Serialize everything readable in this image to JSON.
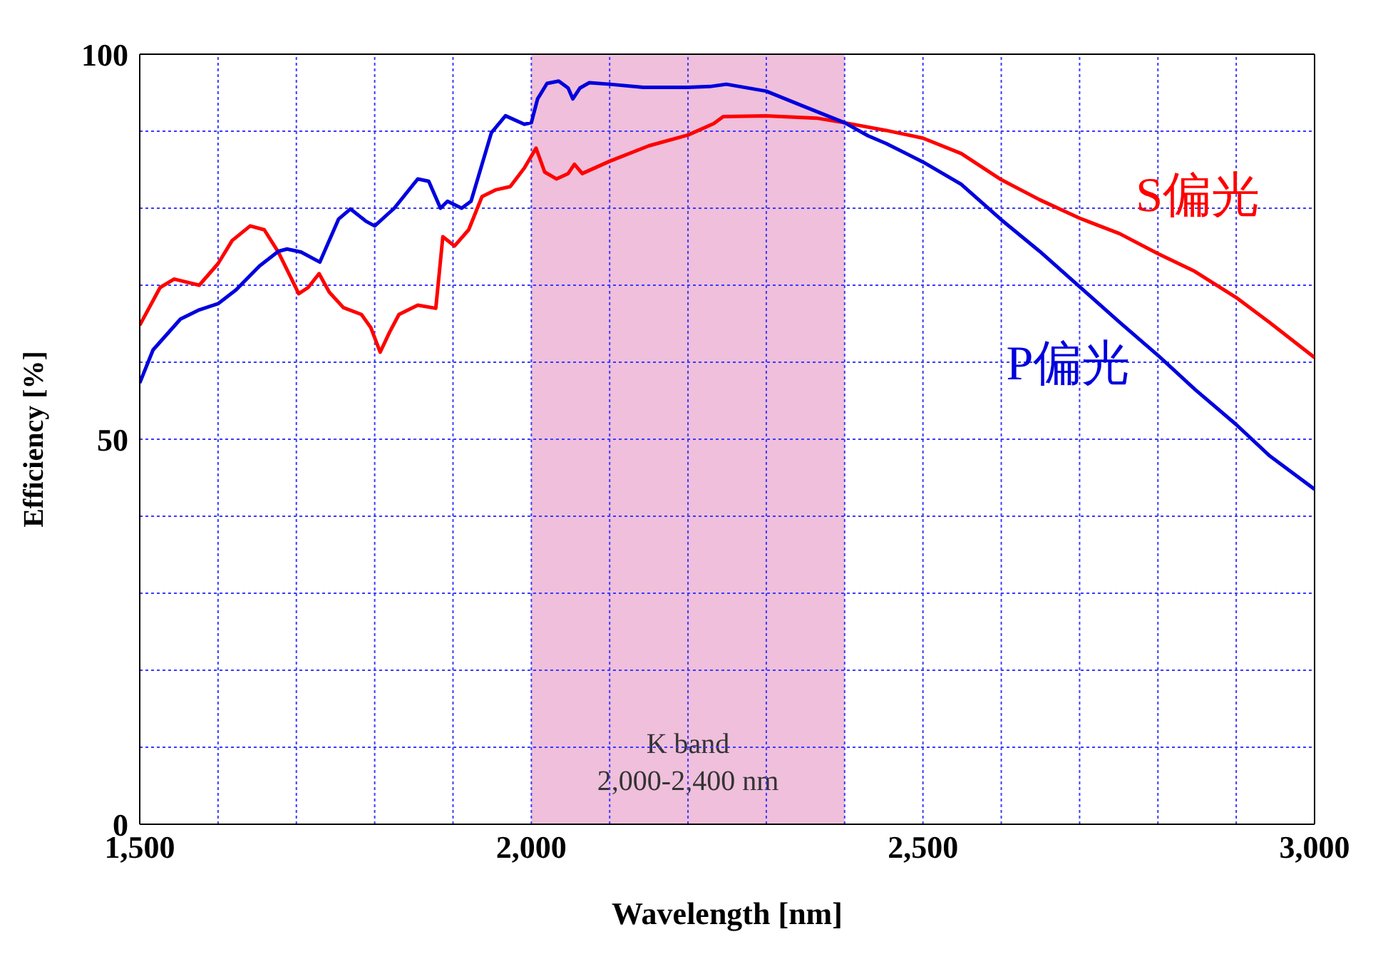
{
  "chart_data": {
    "type": "line",
    "xlabel": "Wavelength [nm]",
    "ylabel": "Efficiency [%]",
    "xlim": [
      1500,
      3000
    ],
    "ylim": [
      0,
      100
    ],
    "xticks": [
      {
        "value": 1500,
        "label": "1,500"
      },
      {
        "value": 1600,
        "label": null
      },
      {
        "value": 1700,
        "label": null
      },
      {
        "value": 1800,
        "label": null
      },
      {
        "value": 1900,
        "label": null
      },
      {
        "value": 2000,
        "label": "2,000"
      },
      {
        "value": 2100,
        "label": null
      },
      {
        "value": 2200,
        "label": null
      },
      {
        "value": 2300,
        "label": null
      },
      {
        "value": 2400,
        "label": null
      },
      {
        "value": 2500,
        "label": "2,500"
      },
      {
        "value": 2600,
        "label": null
      },
      {
        "value": 2700,
        "label": null
      },
      {
        "value": 2800,
        "label": null
      },
      {
        "value": 2900,
        "label": null
      },
      {
        "value": 3000,
        "label": "3,000"
      }
    ],
    "yticks": [
      0,
      {
        "value": 10,
        "label": null
      },
      {
        "value": 20,
        "label": null
      },
      {
        "value": 30,
        "label": null
      },
      {
        "value": 40,
        "label": null
      },
      50,
      {
        "value": 60,
        "label": null
      },
      {
        "value": 70,
        "label": null
      },
      {
        "value": 80,
        "label": null
      },
      {
        "value": 90,
        "label": null
      },
      100
    ],
    "grid": true,
    "legend": false,
    "marker": "none",
    "line_style": "solid",
    "bands": [
      {
        "axis": "x",
        "from": 2000,
        "to": 2400,
        "label": "K band\n2,000-2,400 nm",
        "color": "#efbfdb"
      }
    ],
    "series": [
      {
        "name": "S偏光",
        "color": "#ff0000",
        "x": [
          1500,
          1526,
          1544,
          1576,
          1600,
          1618,
          1641,
          1659,
          1677,
          1691,
          1703,
          1715,
          1729,
          1742,
          1760,
          1783,
          1795,
          1807,
          1819,
          1831,
          1855,
          1878,
          1887,
          1902,
          1920,
          1937,
          1955,
          1973,
          1991,
          2006,
          2017,
          2032,
          2047,
          2055,
          2065,
          2100,
          2150,
          2200,
          2233,
          2245,
          2300,
          2364,
          2400,
          2453,
          2500,
          2549,
          2600,
          2649,
          2700,
          2751,
          2800,
          2847,
          2900,
          2942,
          3000
        ],
        "values": [
          64.8,
          69.7,
          70.8,
          70.0,
          72.8,
          75.8,
          77.7,
          77.2,
          74.3,
          71.4,
          68.9,
          69.7,
          71.5,
          69.1,
          67.1,
          66.2,
          64.5,
          61.3,
          63.9,
          66.2,
          67.4,
          67.0,
          76.3,
          75.1,
          77.2,
          81.5,
          82.4,
          82.8,
          85.2,
          87.8,
          84.7,
          83.8,
          84.5,
          85.7,
          84.5,
          86.1,
          88.1,
          89.5,
          91.0,
          91.9,
          92.0,
          91.7,
          91.1,
          90.1,
          89.1,
          87.1,
          83.7,
          81.1,
          78.7,
          76.7,
          74.1,
          71.8,
          68.4,
          65.2,
          60.6
        ]
      },
      {
        "name": "P偏光",
        "color": "#0000dd",
        "x": [
          1500,
          1517,
          1552,
          1576,
          1600,
          1623,
          1653,
          1677,
          1688,
          1706,
          1730,
          1754,
          1769,
          1789,
          1800,
          1825,
          1855,
          1869,
          1884,
          1893,
          1911,
          1923,
          1949,
          1967,
          1991,
          2000,
          2008,
          2020,
          2035,
          2047,
          2053,
          2062,
          2074,
          2100,
          2143,
          2200,
          2228,
          2249,
          2300,
          2346,
          2400,
          2430,
          2453,
          2500,
          2549,
          2600,
          2649,
          2700,
          2751,
          2800,
          2847,
          2900,
          2942,
          3000
        ],
        "values": [
          57.3,
          61.6,
          65.6,
          66.8,
          67.6,
          69.4,
          72.5,
          74.4,
          74.7,
          74.3,
          73.0,
          78.6,
          79.9,
          78.3,
          77.7,
          80.0,
          83.8,
          83.5,
          80.0,
          80.9,
          80.0,
          80.9,
          89.8,
          92.0,
          90.9,
          91.1,
          94.2,
          96.2,
          96.5,
          95.6,
          94.2,
          95.6,
          96.3,
          96.1,
          95.7,
          95.7,
          95.8,
          96.1,
          95.2,
          93.3,
          91.1,
          89.4,
          88.4,
          86.0,
          83.1,
          78.5,
          74.4,
          69.8,
          65.2,
          60.9,
          56.5,
          51.9,
          47.9,
          43.5
        ]
      }
    ]
  }
}
